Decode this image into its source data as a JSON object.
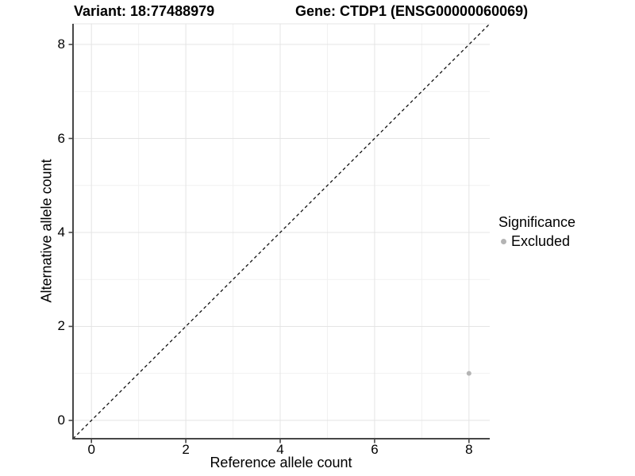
{
  "chart_data": {
    "type": "scatter",
    "title_variant": "Variant: 18:77488979",
    "title_gene": "Gene: CTDP1 (ENSG00000060069)",
    "xlabel": "Reference allele count",
    "ylabel": "Alternative allele count",
    "xlim": [
      -0.39,
      8.44
    ],
    "ylim": [
      -0.39,
      8.44
    ],
    "x_ticks": [
      0,
      2,
      4,
      6,
      8
    ],
    "y_ticks": [
      0,
      2,
      4,
      6,
      8
    ],
    "grid_minor_positions": [
      1,
      3,
      5,
      7
    ],
    "series": [
      {
        "name": "Excluded",
        "color": "#b4b4b4",
        "points": [
          {
            "x": 8,
            "y": 1
          }
        ]
      }
    ],
    "reference_line": {
      "type": "identity y=x",
      "from": [
        -0.39,
        -0.39
      ],
      "to": [
        8.44,
        8.44
      ],
      "style": "dashed",
      "color": "#111111"
    },
    "legend": {
      "position": "right",
      "title": "Significance",
      "entries": [
        {
          "label": "Excluded",
          "color": "#b4b4b4"
        }
      ]
    },
    "colors": {
      "grid_major": "#e4e4e4",
      "grid_minor": "#f1f1f1",
      "axis_line": "#474747",
      "text": "#000000"
    }
  }
}
